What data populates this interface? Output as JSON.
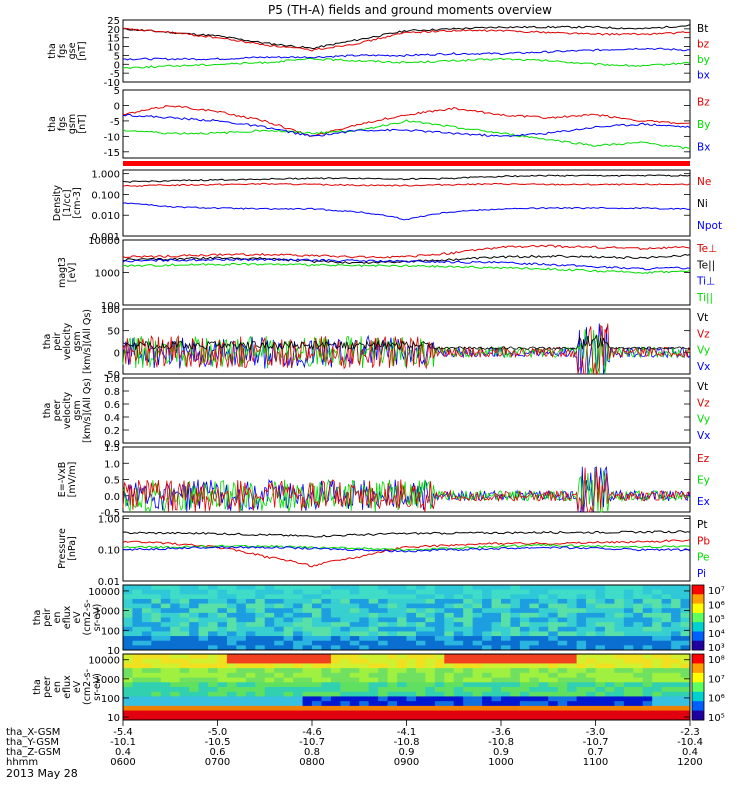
{
  "title": "P5 (TH-A) fields and ground moments overview",
  "date_label": "2013 May 28",
  "colors": {
    "black": "#000000",
    "red": "#e00000",
    "green": "#00dd00",
    "blue": "#0000ff"
  },
  "chart_data": [
    {
      "type": "line",
      "id": "fgs_gse",
      "ylabel": [
        "tha",
        "fgs",
        "gse",
        "[nT]"
      ],
      "ylim": [
        -10,
        25
      ],
      "yticks": [
        "25",
        "20",
        "15",
        "10",
        "5",
        "0",
        "-5",
        "-10"
      ],
      "legend": [
        "Bt",
        "bz",
        "by",
        "bx"
      ],
      "legend_colors": [
        "#000000",
        "#e00000",
        "#00dd00",
        "#0000ff"
      ],
      "x_hours": [
        6,
        6.5,
        7,
        7.5,
        8,
        8.5,
        9,
        9.5,
        10,
        10.5,
        11,
        11.5,
        12
      ],
      "series": [
        {
          "name": "Bt",
          "color": "#000000",
          "values": [
            20,
            18,
            16,
            12,
            9,
            14,
            19,
            20,
            21,
            21,
            21,
            20,
            22
          ]
        },
        {
          "name": "bz",
          "color": "#e00000",
          "values": [
            20,
            18,
            15,
            11,
            8,
            12,
            18,
            19,
            19,
            18,
            17,
            17,
            18
          ]
        },
        {
          "name": "by",
          "color": "#00dd00",
          "values": [
            -2,
            -1,
            0,
            1,
            3,
            2,
            1,
            2,
            3,
            2,
            0,
            -1,
            1
          ]
        },
        {
          "name": "bx",
          "color": "#0000ff",
          "values": [
            3,
            3,
            3,
            4,
            4,
            5,
            5,
            6,
            6,
            7,
            8,
            9,
            8
          ]
        }
      ]
    },
    {
      "type": "line",
      "id": "fgs_gsm",
      "ylabel": [
        "tha",
        "fgs",
        "gsm",
        "[nT]"
      ],
      "ylim": [
        -17,
        5
      ],
      "yticks": [
        "5",
        "0",
        "-5",
        "-10",
        "-15"
      ],
      "legend": [
        "Bz",
        "By",
        "Bx"
      ],
      "legend_colors": [
        "#e00000",
        "#00dd00",
        "#0000ff"
      ],
      "x_hours": [
        6,
        6.5,
        7,
        7.5,
        8,
        8.5,
        9,
        9.5,
        10,
        10.5,
        11,
        11.5,
        12
      ],
      "series": [
        {
          "name": "Bz",
          "color": "#e00000",
          "values": [
            -3,
            0,
            -2,
            -5,
            -10,
            -6,
            -3,
            -1,
            -3,
            -4,
            -3,
            -5,
            -6
          ]
        },
        {
          "name": "By",
          "color": "#00dd00",
          "values": [
            -8,
            -9,
            -9,
            -8,
            -9,
            -8,
            -5,
            -7,
            -9,
            -11,
            -13,
            -12,
            -14
          ]
        },
        {
          "name": "Bx",
          "color": "#0000ff",
          "values": [
            -3,
            -4,
            -5,
            -7,
            -10,
            -8,
            -8,
            -9,
            -10,
            -9,
            -7,
            -6,
            -7
          ]
        }
      ]
    },
    {
      "type": "line",
      "id": "density",
      "ylabel": [
        "Density",
        "[1/cc]",
        "[cm-3]"
      ],
      "yscale": "log",
      "ylim": [
        0.001,
        1.5
      ],
      "yticks": [
        "1.000",
        "0.100",
        "0.010",
        "0.001"
      ],
      "legend": [
        "Ne",
        "Ni",
        "Npot"
      ],
      "legend_colors": [
        "#e00000",
        "#000000",
        "#0000ff"
      ],
      "x_hours": [
        6,
        6.5,
        7,
        7.5,
        8,
        8.5,
        9,
        9.5,
        10,
        10.5,
        11,
        11.5,
        12
      ],
      "series": [
        {
          "name": "Ne",
          "color": "#e00000",
          "values": [
            0.25,
            0.28,
            0.3,
            0.32,
            0.3,
            0.28,
            0.27,
            0.3,
            0.32,
            0.3,
            0.3,
            0.3,
            0.31
          ]
        },
        {
          "name": "Ni",
          "color": "#000000",
          "values": [
            0.4,
            0.45,
            0.5,
            0.55,
            0.6,
            0.6,
            0.55,
            0.6,
            0.75,
            0.8,
            0.8,
            0.8,
            0.82
          ]
        },
        {
          "name": "Npot",
          "color": "#0000ff",
          "values": [
            0.04,
            0.025,
            0.022,
            0.02,
            0.02,
            0.014,
            0.006,
            0.015,
            0.02,
            0.022,
            0.022,
            0.022,
            0.02
          ]
        }
      ]
    },
    {
      "type": "line",
      "id": "temperature",
      "ylabel": [
        "magt3",
        "[eV]"
      ],
      "yscale": "log",
      "ylim": [
        100,
        10000
      ],
      "yticks": [
        "10000",
        "1000",
        "100"
      ],
      "legend": [
        "Te⊥",
        "Te||",
        "Ti⊥",
        "Ti||"
      ],
      "legend_colors": [
        "#e00000",
        "#000000",
        "#0000ff",
        "#00dd00"
      ],
      "x_hours": [
        6,
        6.5,
        7,
        7.5,
        8,
        8.5,
        9,
        9.5,
        10,
        10.5,
        11,
        11.5,
        12
      ],
      "series": [
        {
          "name": "Te⊥",
          "color": "#e00000",
          "values": [
            3000,
            3200,
            3500,
            3600,
            3300,
            3000,
            3000,
            4000,
            6000,
            6500,
            6000,
            5500,
            6000
          ]
        },
        {
          "name": "Te||",
          "color": "#000000",
          "values": [
            2500,
            2600,
            2800,
            2700,
            2200,
            2000,
            2200,
            2500,
            3000,
            3200,
            3000,
            2800,
            3500
          ]
        },
        {
          "name": "Ti⊥",
          "color": "#0000ff",
          "values": [
            2200,
            2400,
            2500,
            2500,
            2400,
            2300,
            2200,
            2100,
            2000,
            1800,
            1500,
            1300,
            1400
          ]
        },
        {
          "name": "Ti||",
          "color": "#00dd00",
          "values": [
            1600,
            1700,
            1800,
            1800,
            1700,
            1600,
            1600,
            1500,
            1400,
            1300,
            1100,
            1000,
            1100
          ]
        }
      ]
    },
    {
      "type": "line",
      "id": "peir_velocity",
      "ylabel": [
        "tha",
        "peir",
        "velocity",
        "gsm",
        "[km/s](All Qs)"
      ],
      "ylim": [
        -50,
        100
      ],
      "yticks": [
        "100",
        "50",
        "0",
        "-50"
      ],
      "legend": [
        "Vt",
        "Vz",
        "Vy",
        "Vx"
      ],
      "legend_colors": [
        "#000000",
        "#e00000",
        "#00dd00",
        "#0000ff"
      ],
      "noise": true
    },
    {
      "type": "line",
      "id": "peer_velocity",
      "ylabel": [
        "tha",
        "peer",
        "velocity",
        "gsm",
        "[km/s](All Qs)"
      ],
      "ylim": [
        0,
        1
      ],
      "yticks": [
        "1.0",
        "0.8",
        "0.6",
        "0.4",
        "0.2",
        "0.0"
      ],
      "legend": [
        "Vt",
        "Vz",
        "Vy",
        "Vx"
      ],
      "legend_colors": [
        "#000000",
        "#e00000",
        "#00dd00",
        "#0000ff"
      ],
      "empty": true
    },
    {
      "type": "line",
      "id": "efield",
      "ylabel": [
        "E=-VxB",
        "[mV/m]"
      ],
      "ylim": [
        -0.5,
        1.5
      ],
      "yticks": [
        "1.5",
        "1.0",
        "0.5",
        "0.0",
        "-0.5"
      ],
      "legend": [
        "Ez",
        "Ey",
        "Ex"
      ],
      "legend_colors": [
        "#e00000",
        "#00dd00",
        "#0000ff"
      ],
      "noise": true
    },
    {
      "type": "line",
      "id": "pressure",
      "ylabel": [
        "Pressure",
        "[nPa]"
      ],
      "yscale": "log",
      "ylim": [
        0.01,
        1.2
      ],
      "yticks": [
        "1.00",
        "0.10",
        "0.01"
      ],
      "legend": [
        "Pt",
        "Pb",
        "Pe",
        "Pi"
      ],
      "legend_colors": [
        "#000000",
        "#e00000",
        "#00dd00",
        "#0000ff"
      ],
      "x_hours": [
        6,
        6.5,
        7,
        7.5,
        8,
        8.5,
        9,
        9.5,
        10,
        10.5,
        11,
        11.5,
        12
      ],
      "series": [
        {
          "name": "Pt",
          "color": "#000000",
          "values": [
            0.35,
            0.34,
            0.33,
            0.3,
            0.27,
            0.3,
            0.33,
            0.34,
            0.35,
            0.36,
            0.36,
            0.37,
            0.38
          ]
        },
        {
          "name": "Pb",
          "color": "#e00000",
          "values": [
            0.18,
            0.16,
            0.12,
            0.06,
            0.03,
            0.06,
            0.12,
            0.14,
            0.16,
            0.16,
            0.17,
            0.18,
            0.2
          ]
        },
        {
          "name": "Pe",
          "color": "#00dd00",
          "values": [
            0.12,
            0.12,
            0.13,
            0.13,
            0.12,
            0.11,
            0.1,
            0.11,
            0.13,
            0.14,
            0.13,
            0.12,
            0.13
          ]
        },
        {
          "name": "Pi",
          "color": "#0000ff",
          "values": [
            0.1,
            0.11,
            0.12,
            0.12,
            0.11,
            0.1,
            0.09,
            0.1,
            0.11,
            0.12,
            0.11,
            0.1,
            0.1
          ]
        }
      ]
    },
    {
      "type": "heatmap",
      "id": "peir_spec",
      "ylabel": [
        "tha",
        "peir",
        "en",
        "eflux",
        "eV",
        "(cm2-s-",
        "sr-eV)"
      ],
      "yscale": "log",
      "ylim": [
        10,
        20000
      ],
      "yticks": [
        "10000",
        "1000",
        "100",
        "10"
      ],
      "colorbar_ticks": [
        "10⁷",
        "10⁶",
        "10⁵",
        "10⁴",
        "10³"
      ]
    },
    {
      "type": "heatmap",
      "id": "peer_spec",
      "ylabel": [
        "tha",
        "peer",
        "en",
        "eflux",
        "eV",
        "(cm2-s-",
        "sr-eV)"
      ],
      "yscale": "log",
      "ylim": [
        7,
        20000
      ],
      "yticks": [
        "10000",
        "1000",
        "100",
        "10"
      ],
      "colorbar_ticks": [
        "10⁸",
        "10⁷",
        "10⁶",
        "10⁵"
      ]
    }
  ],
  "x_axis": {
    "labels": [
      "tha_X-GSM",
      "tha_Y-GSM",
      "tha_Z-GSM",
      "hhmm"
    ],
    "columns": [
      {
        "x": "-5.4",
        "y": "-10.1",
        "z": "0.4",
        "t": "0600"
      },
      {
        "x": "-5.0",
        "y": "-10.5",
        "z": "0.6",
        "t": "0700"
      },
      {
        "x": "-4.6",
        "y": "-10.7",
        "z": "0.8",
        "t": "0800"
      },
      {
        "x": "-4.1",
        "y": "-10.8",
        "z": "0.9",
        "t": "0900"
      },
      {
        "x": "-3.6",
        "y": "-10.8",
        "z": "0.9",
        "t": "1000"
      },
      {
        "x": "-3.0",
        "y": "-10.7",
        "z": "0.7",
        "t": "1100"
      },
      {
        "x": "-2.3",
        "y": "-10.4",
        "z": "0.4",
        "t": "1200"
      }
    ]
  }
}
